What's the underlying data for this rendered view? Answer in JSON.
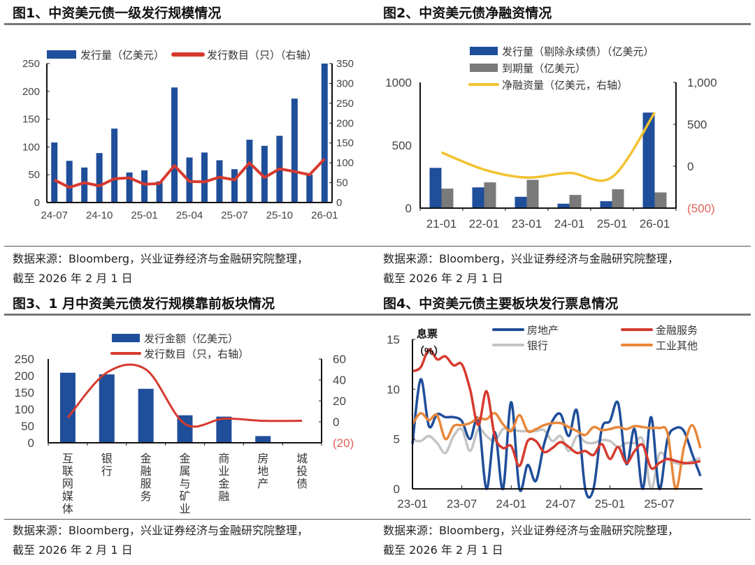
{
  "figures": [
    {
      "title": "图1、中资美元债一级发行规模情况",
      "source_line1": "数据来源：Bloomberg，兴业证券经济与金融研究院整理，",
      "source_line2": "截至 2026 年 2 月 1 日"
    },
    {
      "title": "图2、中资美元债净融资情况",
      "source_line1": "数据来源：Bloomberg，兴业证券经济与金融研究院整理，",
      "source_line2": "截至 2026 年 2 月 1 日"
    },
    {
      "title": "图3、1 月中资美元债发行规模靠前板块情况",
      "source_line1": "数据来源：Bloomberg，兴业证券经济与金融研究院整理，",
      "source_line2": "截至 2026 年 2 月 1 日"
    },
    {
      "title": "图4、中资美元债主要板块发行票息情况",
      "source_line1": "数据来源：Bloomberg，兴业证券经济与金融研究院整理，",
      "source_line2": "截至 2026 年 2 月 1 日"
    }
  ],
  "chart_data": [
    {
      "type": "bar+line",
      "categories": [
        "24-07",
        "24-08",
        "24-09",
        "24-10",
        "24-11",
        "24-12",
        "25-01",
        "25-02",
        "25-03",
        "25-04",
        "25-05",
        "25-06",
        "25-07",
        "25-08",
        "25-09",
        "25-10",
        "25-11",
        "25-12",
        "26-01"
      ],
      "x_tick_labels": [
        "24-07",
        "24-10",
        "25-01",
        "25-04",
        "25-07",
        "25-10",
        "26-01"
      ],
      "series": [
        {
          "name": "发行量（亿美元）",
          "type": "bar",
          "axis": "left",
          "color": "#1F4E9A",
          "values": [
            108,
            75,
            63,
            89,
            133,
            54,
            58,
            38,
            207,
            81,
            90,
            76,
            60,
            113,
            102,
            120,
            187,
            50,
            250
          ]
        },
        {
          "name": "发行数目（只）（右轴）",
          "type": "line",
          "axis": "right",
          "color": "#D63A2F",
          "values": [
            57,
            38,
            50,
            42,
            60,
            62,
            46,
            48,
            93,
            53,
            52,
            64,
            57,
            100,
            63,
            85,
            78,
            70,
            110
          ]
        }
      ],
      "ylim_left": [
        0,
        250
      ],
      "y_ticks_left": [
        "0",
        "50",
        "100",
        "150",
        "200",
        "250"
      ],
      "ylim_right": [
        0,
        350
      ],
      "y_ticks_right": [
        "0",
        "50",
        "100",
        "150",
        "200",
        "250",
        "300",
        "350"
      ],
      "legend": "top",
      "grid": false
    },
    {
      "type": "bar+line",
      "categories": [
        "21-01",
        "22-01",
        "23-01",
        "24-01",
        "25-01",
        "26-01"
      ],
      "series": [
        {
          "name": "发行量（剔除永续债）（亿美元）",
          "type": "bar",
          "axis": "left",
          "color": "#1F4E9A",
          "values": [
            320,
            165,
            90,
            35,
            55,
            760
          ]
        },
        {
          "name": "到期量（亿美元）",
          "type": "bar",
          "axis": "left",
          "color": "#7A7A7A",
          "values": [
            155,
            205,
            225,
            105,
            150,
            125
          ]
        },
        {
          "name": "净融资量（亿美元，右轴）",
          "type": "line",
          "axis": "right",
          "color": "#F2C230",
          "values": [
            165,
            -40,
            -135,
            -80,
            -130,
            640
          ]
        }
      ],
      "ylim_left": [
        0,
        1000
      ],
      "y_ticks_left": [
        "0",
        "500",
        "1000"
      ],
      "ylim_right": [
        -500,
        1000
      ],
      "y_ticks_right": [
        "(500)",
        "0",
        "500",
        "1,000"
      ],
      "negative_tick_color": "#E0625A",
      "legend": "top",
      "grid": false
    },
    {
      "type": "bar+line",
      "categories": [
        "互联网媒体",
        "银行",
        "金融服务",
        "金属与矿业",
        "商业金融",
        "房地产",
        "城投债"
      ],
      "series": [
        {
          "name": "发行金额（亿美元）",
          "type": "bar",
          "axis": "left",
          "color": "#1F4E9A",
          "values": [
            209,
            204,
            161,
            82,
            78,
            20,
            1
          ]
        },
        {
          "name": "发行数目（只，右轴）",
          "type": "line",
          "axis": "right",
          "color": "#D63A2F",
          "values": [
            4,
            47,
            50,
            -2,
            3,
            1,
            1
          ]
        }
      ],
      "ylim_left": [
        0,
        250
      ],
      "y_ticks_left": [
        "0",
        "50",
        "100",
        "150",
        "200",
        "250"
      ],
      "ylim_right": [
        -20,
        60
      ],
      "y_ticks_right": [
        "(20)",
        "0",
        "20",
        "40",
        "60"
      ],
      "negative_tick_color": "#E0625A",
      "legend": "top",
      "grid": false
    },
    {
      "type": "line",
      "x_start": "23-01",
      "x_end": "25-12",
      "x_tick_labels": [
        "23-01",
        "23-07",
        "24-01",
        "24-07",
        "25-01",
        "25-07"
      ],
      "ylabel_line1": "息票",
      "ylabel_line2": "（%）",
      "ylim": [
        0,
        15
      ],
      "y_ticks": [
        "0",
        "5",
        "10",
        "15"
      ],
      "series": [
        {
          "name": "房地产",
          "color": "#1F4E9A",
          "values": [
            4.5,
            11,
            6.3,
            7.5,
            7.2,
            7.2,
            6.8,
            5,
            7,
            0,
            5.7,
            0,
            8.7,
            0,
            2.4,
            0.8,
            4.5,
            6.8,
            7.5,
            5.3,
            7.8,
            0,
            0,
            6,
            6.8,
            8.6,
            2.5,
            6,
            0,
            7.2,
            0,
            5,
            6.1,
            5.8,
            3.5,
            1.3
          ]
        },
        {
          "name": "金融服务",
          "color": "#D63A2F",
          "values": [
            11.8,
            12.2,
            14,
            13,
            13.3,
            12.4,
            12.5,
            10,
            6.4,
            9.8,
            5.3,
            4.1,
            4.3,
            2.3,
            4.8,
            4.8,
            3.7,
            4.1,
            4.7,
            4.2,
            3.6,
            3.8,
            3.4,
            4.5,
            3,
            4.2,
            2.6,
            3.8,
            4.4,
            2.1,
            2.6,
            3,
            2.8,
            2.6,
            2.6,
            2.8
          ]
        },
        {
          "name": "银行",
          "color": "#C4C4C4",
          "values": [
            4.9,
            4.8,
            5.3,
            4.6,
            3.6,
            5.3,
            6,
            3.8,
            6,
            5.3,
            4.8,
            6,
            6,
            5.8,
            5.8,
            5.8,
            5.9,
            4.8,
            5.3,
            3.8,
            5.3,
            4.7,
            4.6,
            4.9,
            4.8,
            4.2,
            4.6,
            4.6,
            4.9,
            0,
            3.5,
            3,
            2.6,
            2.5,
            2.8,
            3.1
          ]
        },
        {
          "name": "工业其他",
          "color": "#E8873A",
          "values": [
            6.5,
            7.6,
            6.9,
            7.4,
            5,
            6.3,
            6.4,
            6.6,
            7.1,
            7,
            7.6,
            6.5,
            5.8,
            7.4,
            5.8,
            6,
            6.4,
            6.6,
            6.6,
            6.2,
            5.8,
            5.4,
            6.2,
            5.9,
            6,
            6.2,
            6,
            6.3,
            6.2,
            6.1,
            6.1,
            5.6,
            0,
            4.2,
            6.4,
            4.1
          ]
        }
      ],
      "legend": "top",
      "grid": false
    }
  ]
}
